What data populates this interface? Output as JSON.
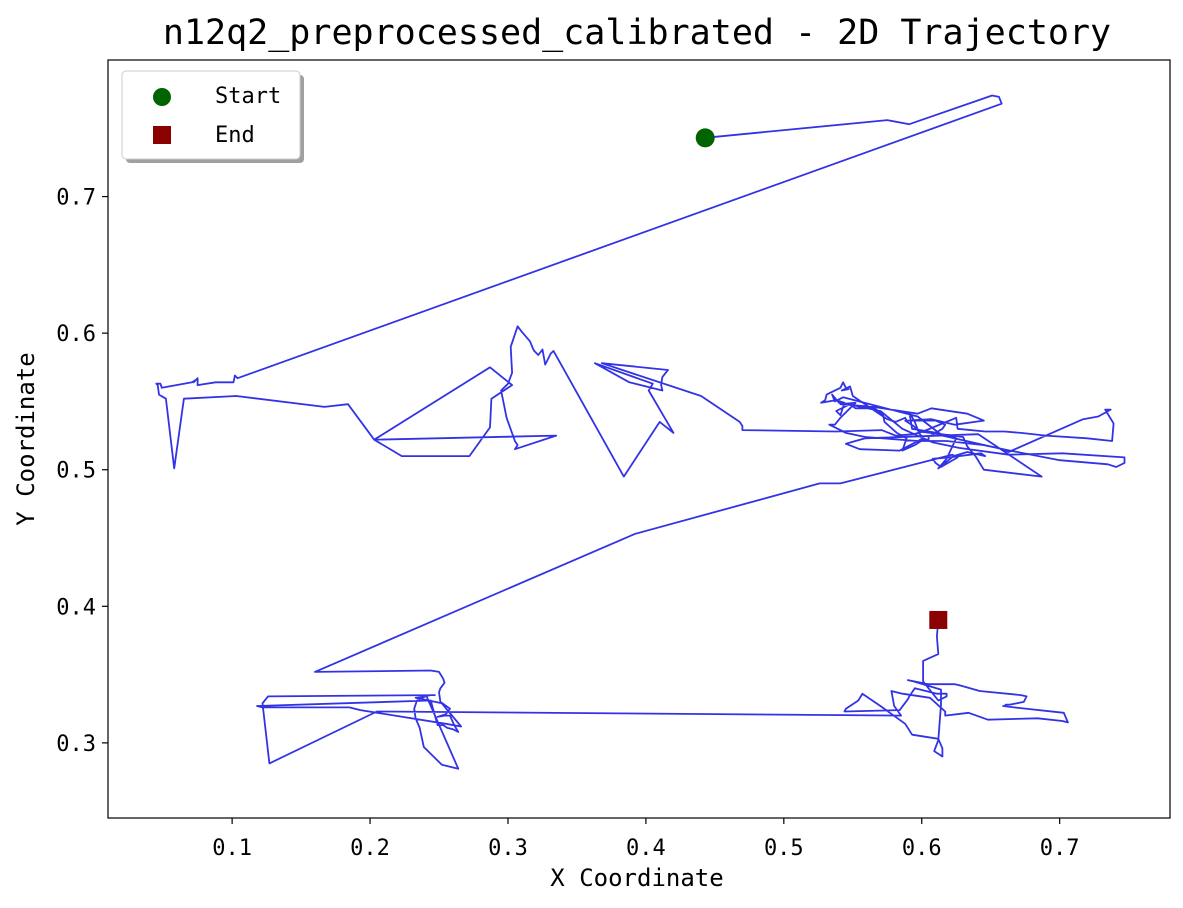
{
  "chart_data": {
    "type": "line",
    "title": "n12q2_preprocessed_calibrated - 2D Trajectory",
    "xlabel": "X Coordinate",
    "ylabel": "Y Coordinate",
    "xlim": [
      0.01,
      0.78
    ],
    "ylim": [
      0.245,
      0.8
    ],
    "xticks": [
      0.1,
      0.2,
      0.3,
      0.4,
      0.5,
      0.6,
      0.7
    ],
    "xtick_labels": [
      "0.1",
      "0.2",
      "0.3",
      "0.4",
      "0.5",
      "0.6",
      "0.7"
    ],
    "yticks": [
      0.3,
      0.4,
      0.5,
      0.6,
      0.7
    ],
    "ytick_labels": [
      "0.3",
      "0.4",
      "0.5",
      "0.6",
      "0.7"
    ],
    "grid": false,
    "legend_position": "top-left",
    "colors": {
      "trajectory": "#3333e6",
      "start": "#006400",
      "end": "#8b0000"
    },
    "legend": [
      {
        "label": "Start",
        "marker": "circle",
        "color": "#006400"
      },
      {
        "label": "End",
        "marker": "square",
        "color": "#8b0000"
      }
    ],
    "markers": {
      "start": {
        "x": 0.443,
        "y": 0.743
      },
      "end": {
        "x": 0.612,
        "y": 0.39
      }
    },
    "series": [
      {
        "x": [
          0.443,
          0.575,
          0.591,
          0.651,
          0.656,
          0.658,
          0.104,
          0.104,
          0.102,
          0.101,
          0.088,
          0.075,
          0.075,
          0.072,
          0.074,
          0.074,
          0.074,
          0.071,
          0.049,
          0.048,
          0.045,
          0.046,
          0.047,
          0.052,
          0.058,
          0.065,
          0.103,
          0.167,
          0.184,
          0.203,
          0.287,
          0.303,
          0.288,
          0.288,
          0.287,
          0.272,
          0.223,
          0.203,
          0.335,
          0.305,
          0.307,
          0.305,
          0.299,
          0.295,
          0.3,
          0.303,
          0.302,
          0.303,
          0.307,
          0.31,
          0.316,
          0.318,
          0.319,
          0.322,
          0.325,
          0.327,
          0.331,
          0.333,
          0.384,
          0.41,
          0.42,
          0.402,
          0.405,
          0.363,
          0.388,
          0.412,
          0.411,
          0.412,
          0.416,
          0.368,
          0.44,
          0.468,
          0.47,
          0.47,
          0.538,
          0.571,
          0.581,
          0.594,
          0.601,
          0.625,
          0.626,
          0.646,
          0.66,
          0.672,
          0.69,
          0.72,
          0.738,
          0.739,
          0.739,
          0.733,
          0.737,
          0.728,
          0.717,
          0.663,
          0.659,
          0.615,
          0.597,
          0.543,
          0.537,
          0.535,
          0.54,
          0.551,
          0.57,
          0.586,
          0.608,
          0.627,
          0.663,
          0.702,
          0.747,
          0.747,
          0.741,
          0.735,
          0.7,
          0.664,
          0.645,
          0.618,
          0.597,
          0.559,
          0.545,
          0.541,
          0.533,
          0.537,
          0.541,
          0.542,
          0.552,
          0.541,
          0.565,
          0.597,
          0.607,
          0.633,
          0.645,
          0.645,
          0.624,
          0.607,
          0.589,
          0.588,
          0.581,
          0.575,
          0.55,
          0.548,
          0.542,
          0.547,
          0.545,
          0.543,
          0.541,
          0.531,
          0.53,
          0.527,
          0.538,
          0.544,
          0.541,
          0.538,
          0.548,
          0.552,
          0.566,
          0.572,
          0.573,
          0.582,
          0.589,
          0.586,
          0.595,
          0.601,
          0.605,
          0.605,
          0.615,
          0.617,
          0.61,
          0.588,
          0.594,
          0.598,
          0.614,
          0.63,
          0.633,
          0.639,
          0.645,
          0.687,
          0.641,
          0.559,
          0.545,
          0.555,
          0.584,
          0.601,
          0.598,
          0.595,
          0.591,
          0.593,
          0.611,
          0.618,
          0.625,
          0.618,
          0.612,
          0.623,
          0.633,
          0.646,
          0.643,
          0.62,
          0.608,
          0.61,
          0.614,
          0.626,
          0.622,
          0.541,
          0.526,
          0.392,
          0.16,
          0.244,
          0.25,
          0.253,
          0.254,
          0.251,
          0.25,
          0.251,
          0.258,
          0.255,
          0.249,
          0.254,
          0.258,
          0.261,
          0.264,
          0.26,
          0.256,
          0.253,
          0.249,
          0.244,
          0.118,
          0.122,
          0.184,
          0.185,
          0.193,
          0.255,
          0.266,
          0.252,
          0.233,
          0.241,
          0.264,
          0.252,
          0.239,
          0.236,
          0.233,
          0.232,
          0.234,
          0.24,
          0.244,
          0.247,
          0.126,
          0.122,
          0.127,
          0.205,
          0.585,
          0.58,
          0.578,
          0.586,
          0.606,
          0.617,
          0.617,
          0.634,
          0.648,
          0.684,
          0.702,
          0.706,
          0.703,
          0.667,
          0.659,
          0.66,
          0.661,
          0.664,
          0.674,
          0.676,
          0.672,
          0.642,
          0.628,
          0.624,
          0.605,
          0.59,
          0.594,
          0.614,
          0.614,
          0.612,
          0.609,
          0.615,
          0.615,
          0.612,
          0.593,
          0.588,
          0.57,
          0.557,
          0.554,
          0.545,
          0.544,
          0.584,
          0.59,
          0.591,
          0.595,
          0.611,
          0.618,
          0.618,
          0.612,
          0.601,
          0.601,
          0.612,
          0.611,
          0.612
        ],
        "y": [
          0.743,
          0.756,
          0.753,
          0.774,
          0.773,
          0.768,
          0.567,
          0.567,
          0.569,
          0.564,
          0.564,
          0.562,
          0.567,
          0.564,
          0.566,
          0.566,
          0.566,
          0.564,
          0.56,
          0.563,
          0.563,
          0.562,
          0.555,
          0.552,
          0.501,
          0.552,
          0.554,
          0.546,
          0.548,
          0.522,
          0.575,
          0.562,
          0.552,
          0.552,
          0.531,
          0.51,
          0.51,
          0.522,
          0.525,
          0.515,
          0.518,
          0.521,
          0.538,
          0.558,
          0.563,
          0.571,
          0.59,
          0.593,
          0.605,
          0.601,
          0.594,
          0.589,
          0.587,
          0.584,
          0.588,
          0.577,
          0.585,
          0.587,
          0.495,
          0.535,
          0.527,
          0.558,
          0.563,
          0.578,
          0.564,
          0.558,
          0.562,
          0.568,
          0.573,
          0.578,
          0.554,
          0.535,
          0.532,
          0.529,
          0.528,
          0.529,
          0.525,
          0.526,
          0.528,
          0.538,
          0.53,
          0.528,
          0.528,
          0.527,
          0.525,
          0.523,
          0.521,
          0.533,
          0.534,
          0.544,
          0.544,
          0.539,
          0.537,
          0.513,
          0.515,
          0.525,
          0.539,
          0.553,
          0.55,
          0.555,
          0.549,
          0.547,
          0.543,
          0.53,
          0.52,
          0.516,
          0.511,
          0.512,
          0.509,
          0.505,
          0.502,
          0.504,
          0.507,
          0.514,
          0.518,
          0.521,
          0.521,
          0.524,
          0.527,
          0.529,
          0.533,
          0.533,
          0.538,
          0.539,
          0.549,
          0.548,
          0.546,
          0.541,
          0.545,
          0.541,
          0.536,
          0.536,
          0.533,
          0.537,
          0.536,
          0.538,
          0.535,
          0.537,
          0.554,
          0.561,
          0.558,
          0.559,
          0.56,
          0.564,
          0.56,
          0.555,
          0.551,
          0.549,
          0.551,
          0.549,
          0.54,
          0.543,
          0.548,
          0.545,
          0.545,
          0.54,
          0.535,
          0.527,
          0.523,
          0.514,
          0.518,
          0.522,
          0.522,
          0.524,
          0.53,
          0.533,
          0.536,
          0.536,
          0.532,
          0.528,
          0.526,
          0.524,
          0.517,
          0.51,
          0.5,
          0.495,
          0.526,
          0.523,
          0.519,
          0.515,
          0.514,
          0.523,
          0.527,
          0.535,
          0.542,
          0.53,
          0.527,
          0.525,
          0.523,
          0.508,
          0.501,
          0.51,
          0.513,
          0.51,
          0.512,
          0.509,
          0.508,
          0.505,
          0.502,
          0.509,
          0.511,
          0.49,
          0.49,
          0.453,
          0.352,
          0.353,
          0.352,
          0.347,
          0.344,
          0.34,
          0.337,
          0.33,
          0.325,
          0.321,
          0.319,
          0.32,
          0.32,
          0.313,
          0.308,
          0.31,
          0.311,
          0.313,
          0.313,
          0.331,
          0.327,
          0.326,
          0.326,
          0.326,
          0.324,
          0.314,
          0.312,
          0.329,
          0.333,
          0.334,
          0.281,
          0.284,
          0.297,
          0.311,
          0.318,
          0.325,
          0.331,
          0.334,
          0.335,
          0.335,
          0.334,
          0.329,
          0.285,
          0.323,
          0.32,
          0.327,
          0.338,
          0.336,
          0.333,
          0.323,
          0.32,
          0.322,
          0.317,
          0.318,
          0.316,
          0.315,
          0.322,
          0.326,
          0.327,
          0.327,
          0.328,
          0.328,
          0.33,
          0.334,
          0.335,
          0.338,
          0.342,
          0.343,
          0.343,
          0.346,
          0.345,
          0.339,
          0.328,
          0.302,
          0.294,
          0.29,
          0.296,
          0.303,
          0.306,
          0.314,
          0.327,
          0.336,
          0.331,
          0.325,
          0.323,
          0.324,
          0.332,
          0.334,
          0.34,
          0.336,
          0.336,
          0.334,
          0.331,
          0.345,
          0.36,
          0.365,
          0.378,
          0.39
        ]
      }
    ]
  }
}
